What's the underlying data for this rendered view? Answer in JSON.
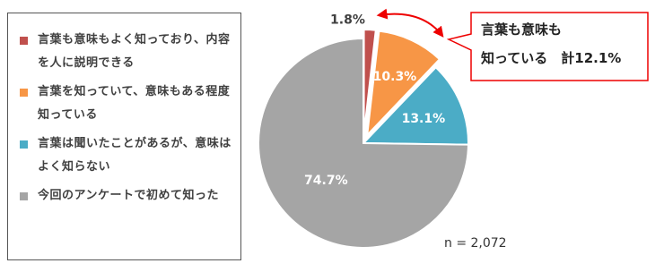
{
  "chart_data": {
    "type": "pie",
    "categories": [
      "言葉も意味もよく知っており、内容を人に説明できる",
      "言葉を知っていて、意味もある程度知っている",
      "言葉は聞いたことがあるが、意味はよく知らない",
      "今回のアンケートで初めて知った"
    ],
    "values": [
      1.8,
      10.3,
      13.1,
      74.7
    ],
    "value_labels": [
      "1.8%",
      "10.3%",
      "13.1%",
      "74.7%"
    ],
    "colors": [
      "#c0504d",
      "#f79646",
      "#4bacc6",
      "#a5a5a5"
    ],
    "explode": [
      true,
      true,
      false,
      false
    ],
    "annotation": [
      "言葉も意味も",
      "知っている　計12.1%"
    ],
    "note": "n = 2,072"
  }
}
